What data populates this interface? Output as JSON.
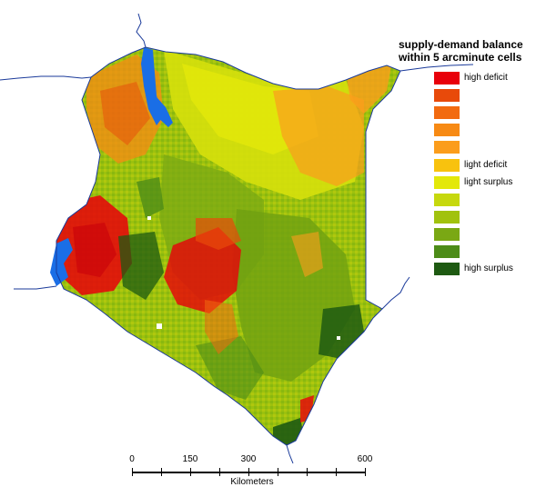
{
  "legend": {
    "title_line1": "supply-demand balance",
    "title_line2": "within 5 arcminute cells",
    "classes": [
      {
        "label": "high deficit",
        "color": "#e8000a"
      },
      {
        "label": "",
        "color": "#e84a0a"
      },
      {
        "label": "",
        "color": "#f26a10"
      },
      {
        "label": "",
        "color": "#f78a14"
      },
      {
        "label": "",
        "color": "#fb9d1c"
      },
      {
        "label": "light deficit",
        "color": "#f8c20e"
      },
      {
        "label": "light surplus",
        "color": "#e3e80a"
      },
      {
        "label": "",
        "color": "#c6d80e"
      },
      {
        "label": "",
        "color": "#a1c20e"
      },
      {
        "label": "",
        "color": "#7aa814"
      },
      {
        "label": "",
        "color": "#4d8c18"
      },
      {
        "label": "high surplus",
        "color": "#1e5a12"
      }
    ]
  },
  "scale": {
    "ticks": [
      "0",
      "150",
      "300",
      "600"
    ],
    "unit": "Kilometers"
  },
  "colors": {
    "water": "#1a6ee6",
    "border": "#1a3a9a"
  }
}
